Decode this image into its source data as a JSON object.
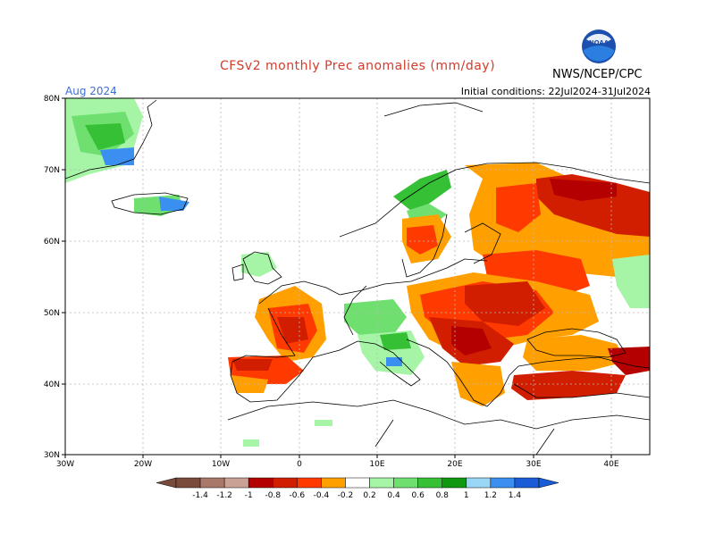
{
  "header": {
    "title": "CFSv2 monthly Prec anomalies (mm/day)",
    "agency": "NWS/NCEP/CPC",
    "month": "Aug 2024",
    "initial_conditions": "Initial conditions: 22Jul2024-31Jul2024",
    "logo_text": "NOAA"
  },
  "axes": {
    "lon_labels": [
      "30W",
      "20W",
      "10W",
      "0",
      "10E",
      "20E",
      "30E",
      "40E"
    ],
    "lat_labels": [
      "80N",
      "70N",
      "60N",
      "50N",
      "40N",
      "30N"
    ]
  },
  "colorbar": {
    "labels": [
      "-1.4",
      "-1.2",
      "-1",
      "-0.8",
      "-0.6",
      "-0.4",
      "-0.2",
      "0.2",
      "0.4",
      "0.6",
      "0.8",
      "1",
      "1.2",
      "1.4"
    ],
    "colors": [
      "#7a4a3c",
      "#a9786a",
      "#c9a195",
      "#b40000",
      "#d21e00",
      "#ff3a00",
      "#ffa000",
      "#ffffff",
      "#a6f5a6",
      "#6fe06f",
      "#36c036",
      "#109810",
      "#9ad6f5",
      "#3a8ff0",
      "#1a5cd6"
    ]
  },
  "anomaly_regions": [
    {
      "name": "greenland-green",
      "value": 0.4
    },
    {
      "name": "greenland-blue",
      "value": 1.2
    },
    {
      "name": "iceland-blue",
      "value": 1.2
    },
    {
      "name": "norway-green",
      "value": 0.8
    },
    {
      "name": "scandinavia-orange",
      "value": -0.3
    },
    {
      "name": "northwest-russia-red",
      "value": -0.8
    },
    {
      "name": "western-europe-red",
      "value": -0.7
    },
    {
      "name": "iberia-red",
      "value": -0.7
    },
    {
      "name": "alps-green",
      "value": 0.5
    },
    {
      "name": "central-europe-red",
      "value": -0.8
    },
    {
      "name": "balkans-red",
      "value": -0.8
    },
    {
      "name": "turkey-red",
      "value": -0.8
    },
    {
      "name": "caucasus-red",
      "value": -0.8
    },
    {
      "name": "east-russia-green",
      "value": 0.3
    }
  ]
}
